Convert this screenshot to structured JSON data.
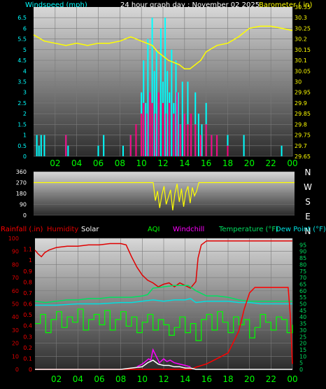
{
  "top_header": {
    "left": "Windspeed (mph)",
    "center": "24 hour graph day : November 02 2025",
    "right": "Barometer ( in)"
  },
  "compass": [
    "N",
    "W",
    "S",
    "E",
    "N"
  ],
  "bottom_header": {
    "rainfall": "Rainfall (.in)",
    "humidity": "Humidity",
    "solar": "Solar",
    "aqi": "AQI",
    "windchill": "Windchill",
    "temperature": "Temperature (°F)",
    "dewpoint": "Dew Point (°F)"
  },
  "colors": {
    "windspeed": "#00FFFF",
    "gust": "#FF0080",
    "barometer": "#FFFF00",
    "direction": "#FFFF00",
    "rainfall": "#FF0000",
    "humidity": "#E00000",
    "solar": "#FFFFFF",
    "aqi": "#00FF00",
    "windchill": "#FF00FF",
    "temperature": "#00E060",
    "dewpoint": "#00E0E0",
    "xaxis": "#00FF00"
  },
  "chart_data": [
    {
      "type": "line",
      "name": "wind and barometer",
      "x": {
        "ticks": [
          "02",
          "04",
          "06",
          "08",
          "10",
          "12",
          "14",
          "16",
          "18",
          "20",
          "22",
          "00"
        ],
        "range_hours": [
          0,
          24
        ]
      },
      "y_left": {
        "label": "Windspeed (mph)",
        "ticks": [
          "0",
          "0.5",
          "1",
          "1.5",
          "2",
          "2.5",
          "3",
          "3.5",
          "4",
          "4.5",
          "5",
          "5.5",
          "6",
          "6.5"
        ],
        "range": [
          0,
          7
        ]
      },
      "y_right": {
        "label": "Barometer ( in)",
        "ticks": [
          "29.65",
          "29.7",
          "29.75",
          "29.8",
          "29.85",
          "29.9",
          "29.95",
          "30",
          "30.05",
          "30.1",
          "30.15",
          "30.2",
          "30.25",
          "30.3",
          "30.35"
        ],
        "range": [
          29.65,
          30.35
        ]
      },
      "grid": true,
      "series": [
        {
          "name": "Barometer ( in)",
          "axis": "right",
          "color": "#FFFF00",
          "x": [
            0,
            1,
            2,
            3,
            4,
            5,
            6,
            7,
            8,
            9,
            10,
            11,
            11.5,
            12,
            12.5,
            13,
            13.5,
            14,
            14.5,
            15,
            15.5,
            16,
            17,
            18,
            19,
            20,
            21,
            22,
            23,
            24
          ],
          "y": [
            30.22,
            30.19,
            30.18,
            30.17,
            30.18,
            30.17,
            30.18,
            30.18,
            30.19,
            30.21,
            30.19,
            30.17,
            30.14,
            30.12,
            30.1,
            30.09,
            30.08,
            30.06,
            30.06,
            30.08,
            30.1,
            30.14,
            30.17,
            30.18,
            30.21,
            30.25,
            30.26,
            30.26,
            30.25,
            30.24
          ]
        },
        {
          "name": "Windspeed (mph)",
          "axis": "left",
          "color": "#00FFFF",
          "x": [
            0.3,
            0.5,
            0.7,
            1,
            3,
            3.2,
            6,
            6.5,
            8.3,
            9,
            9.5,
            10,
            10.2,
            10.4,
            10.6,
            10.8,
            11,
            11.2,
            11.4,
            11.6,
            11.8,
            12,
            12.2,
            12.4,
            12.6,
            12.8,
            13,
            13.2,
            13.4,
            13.6,
            13.8,
            14,
            14.3,
            14.6,
            15,
            15.3,
            15.6,
            16,
            16.5,
            17,
            18,
            19.5,
            23
          ],
          "y": [
            1,
            0.5,
            1,
            1,
            1,
            0.5,
            0.5,
            1,
            0.5,
            1,
            1,
            3,
            4.5,
            2.5,
            5.5,
            3,
            6.5,
            4,
            5,
            2.5,
            6,
            3.5,
            6.5,
            4,
            3,
            5,
            2.5,
            4.5,
            3,
            1.5,
            3.5,
            2,
            3.5,
            1.5,
            3,
            2,
            1.5,
            2.5,
            1,
            1,
            1,
            1,
            0.5
          ]
        },
        {
          "name": "Gust",
          "axis": "left",
          "color": "#FF0080",
          "x": [
            3,
            9,
            9.5,
            10,
            10.2,
            10.5,
            10.8,
            11,
            11.3,
            11.6,
            12,
            12.3,
            12.6,
            13,
            13.3,
            13.6,
            14,
            14.3,
            14.6,
            15,
            15.5,
            16,
            16.5,
            17,
            18
          ],
          "y": [
            1,
            1,
            1.5,
            2,
            2.5,
            2,
            3,
            2.5,
            2,
            3,
            2.5,
            2,
            2.5,
            2,
            3,
            1.5,
            2,
            1.5,
            2,
            1.5,
            1,
            1.5,
            1,
            1,
            0.5
          ]
        }
      ]
    },
    {
      "type": "scatter",
      "name": "wind direction",
      "x": {
        "range_hours": [
          0,
          24
        ]
      },
      "y": {
        "ticks": [
          "0",
          "90",
          "180",
          "270",
          "360"
        ],
        "range": [
          0,
          360
        ]
      },
      "series": [
        {
          "name": "Direction",
          "color": "#FFFF00",
          "x": [
            0,
            11,
            11.2,
            11.4,
            11.6,
            11.8,
            12,
            12.2,
            12.4,
            12.6,
            12.8,
            13,
            13.2,
            13.4,
            13.6,
            13.8,
            14,
            14.2,
            14.4,
            14.6,
            14.8,
            15,
            15.2,
            15.3,
            24
          ],
          "y": [
            270,
            270,
            120,
            200,
            60,
            170,
            240,
            90,
            150,
            210,
            40,
            180,
            260,
            110,
            220,
            70,
            190,
            240,
            100,
            230,
            160,
            200,
            270,
            270,
            270
          ]
        }
      ]
    },
    {
      "type": "line",
      "name": "rain humidity temperature",
      "x": {
        "ticks": [
          "02",
          "04",
          "06",
          "08",
          "10",
          "12",
          "14",
          "16",
          "18",
          "20",
          "22",
          "00"
        ],
        "range_hours": [
          0,
          24
        ]
      },
      "y_rain": {
        "label": "Rainfall (.in)",
        "ticks": [
          "0",
          "0.1",
          "0.2",
          "0.3",
          "0.4",
          "0.5",
          "0.6",
          "0.7",
          "0.8",
          "0.9",
          "1",
          "1.1"
        ],
        "range": [
          0,
          1.2
        ]
      },
      "y_humidity": {
        "label": "Humidity",
        "ticks": [
          "0",
          "10",
          "20",
          "30",
          "40",
          "50",
          "60",
          "70",
          "80",
          "90",
          "100"
        ],
        "range": [
          0,
          100
        ]
      },
      "y_right": {
        "label": "Temperature (°F)",
        "ticks": [
          "0",
          "5",
          "10",
          "15",
          "20",
          "25",
          "30",
          "35",
          "40",
          "45",
          "50",
          "55",
          "60",
          "65",
          "70",
          "75",
          "80",
          "85",
          "90",
          "95"
        ],
        "range": [
          0,
          100
        ]
      },
      "grid": true,
      "series": [
        {
          "name": "Humidity",
          "axis": "humidity",
          "color": "#E00000",
          "x": [
            0,
            0.3,
            0.6,
            0.9,
            1.3,
            2,
            3,
            4,
            5,
            6,
            7,
            8,
            8.5,
            9,
            9.5,
            10,
            10.5,
            11,
            11.5,
            12,
            12.5,
            13,
            13.5,
            14,
            14.5,
            15,
            15.2,
            15.5,
            16,
            18,
            20,
            22,
            24
          ],
          "y": [
            91,
            88,
            86,
            89,
            91,
            93,
            94,
            94,
            95,
            95,
            96,
            96,
            95,
            86,
            78,
            72,
            68,
            66,
            63,
            65,
            66,
            63,
            66,
            64,
            62,
            67,
            85,
            95,
            98,
            98,
            98,
            98,
            98
          ]
        },
        {
          "name": "Temperature (°F)",
          "axis": "right",
          "color": "#00E060",
          "x": [
            0,
            1,
            2,
            3,
            4,
            5,
            6,
            7,
            8,
            9,
            10,
            10.5,
            11,
            12,
            13,
            14,
            14.3,
            15,
            16,
            17,
            18,
            19,
            20,
            21,
            22,
            23,
            24
          ],
          "y": [
            52,
            51,
            52,
            53,
            53,
            54,
            54,
            55,
            55,
            55,
            56,
            57,
            62,
            63,
            64,
            64,
            64,
            60,
            56,
            56,
            55,
            53,
            52,
            52,
            52,
            52,
            52
          ]
        },
        {
          "name": "Dew Point (°F)",
          "axis": "right",
          "color": "#00E0E0",
          "x": [
            0,
            2,
            4,
            6,
            8,
            9,
            10,
            11,
            12,
            13,
            14,
            14.5,
            15,
            16,
            17,
            18,
            19,
            20,
            21,
            22,
            23,
            24
          ],
          "y": [
            49,
            49,
            50,
            50,
            51,
            51,
            52,
            53,
            52,
            53,
            53,
            54,
            51,
            52,
            52,
            52,
            51,
            51,
            50,
            50,
            50,
            50
          ]
        },
        {
          "name": "AQI",
          "axis": "right",
          "color": "#00FF00",
          "x": [
            0,
            0.5,
            1,
            1.5,
            2,
            2.5,
            3,
            3.5,
            4,
            4.5,
            5,
            5.5,
            6,
            6.5,
            7,
            7.5,
            8,
            8.5,
            9,
            9.5,
            10,
            10.5,
            11,
            11.5,
            12,
            12.5,
            13,
            13.5,
            14,
            14.5,
            15,
            15.5,
            16,
            16.5,
            17,
            17.5,
            18,
            18.5,
            19,
            19.5,
            20,
            20.5,
            21,
            21.5,
            22,
            22.5,
            23,
            23.5,
            24
          ],
          "y": [
            35,
            42,
            28,
            38,
            44,
            32,
            40,
            36,
            46,
            30,
            38,
            42,
            34,
            45,
            30,
            38,
            44,
            33,
            40,
            28,
            36,
            42,
            30,
            38,
            34,
            26,
            32,
            40,
            28,
            35,
            22,
            38,
            42,
            30,
            44,
            36,
            28,
            40,
            34,
            38,
            24,
            32,
            42,
            36,
            30,
            40,
            38,
            28,
            34
          ]
        },
        {
          "name": "Rainfall (.in)",
          "axis": "rain",
          "color": "#FF0000",
          "x": [
            0,
            14.5,
            15,
            16,
            17,
            18,
            18.5,
            19,
            19.5,
            20,
            20.5,
            21,
            22,
            23,
            23.6,
            23.8,
            24
          ],
          "y": [
            0,
            0,
            0.02,
            0.05,
            0.1,
            0.15,
            0.25,
            0.35,
            0.55,
            0.7,
            0.75,
            0.75,
            0.75,
            0.75,
            0.75,
            0.5,
            0.05
          ]
        },
        {
          "name": "Solar",
          "axis": "humidity",
          "color": "#FFFFFF",
          "x": [
            0,
            7,
            8,
            9,
            10,
            10.5,
            11,
            11.5,
            12,
            12.5,
            13,
            13.5,
            14,
            14.5,
            15,
            16,
            17,
            24
          ],
          "y": [
            0,
            0,
            0,
            1,
            2,
            5,
            7,
            4,
            3,
            3,
            2,
            2,
            1,
            1,
            0,
            0,
            0,
            0
          ]
        },
        {
          "name": "Windchill",
          "axis": "right",
          "color": "#FF00FF",
          "x": [
            9.5,
            10,
            10.3,
            10.6,
            10.8,
            11,
            11.3,
            11.6,
            12,
            12.3,
            12.6,
            13,
            13.5,
            14,
            14.5
          ],
          "y": [
            2,
            4,
            6,
            8,
            7,
            15,
            10,
            5,
            8,
            6,
            7,
            5,
            4,
            3,
            2
          ]
        }
      ]
    }
  ]
}
